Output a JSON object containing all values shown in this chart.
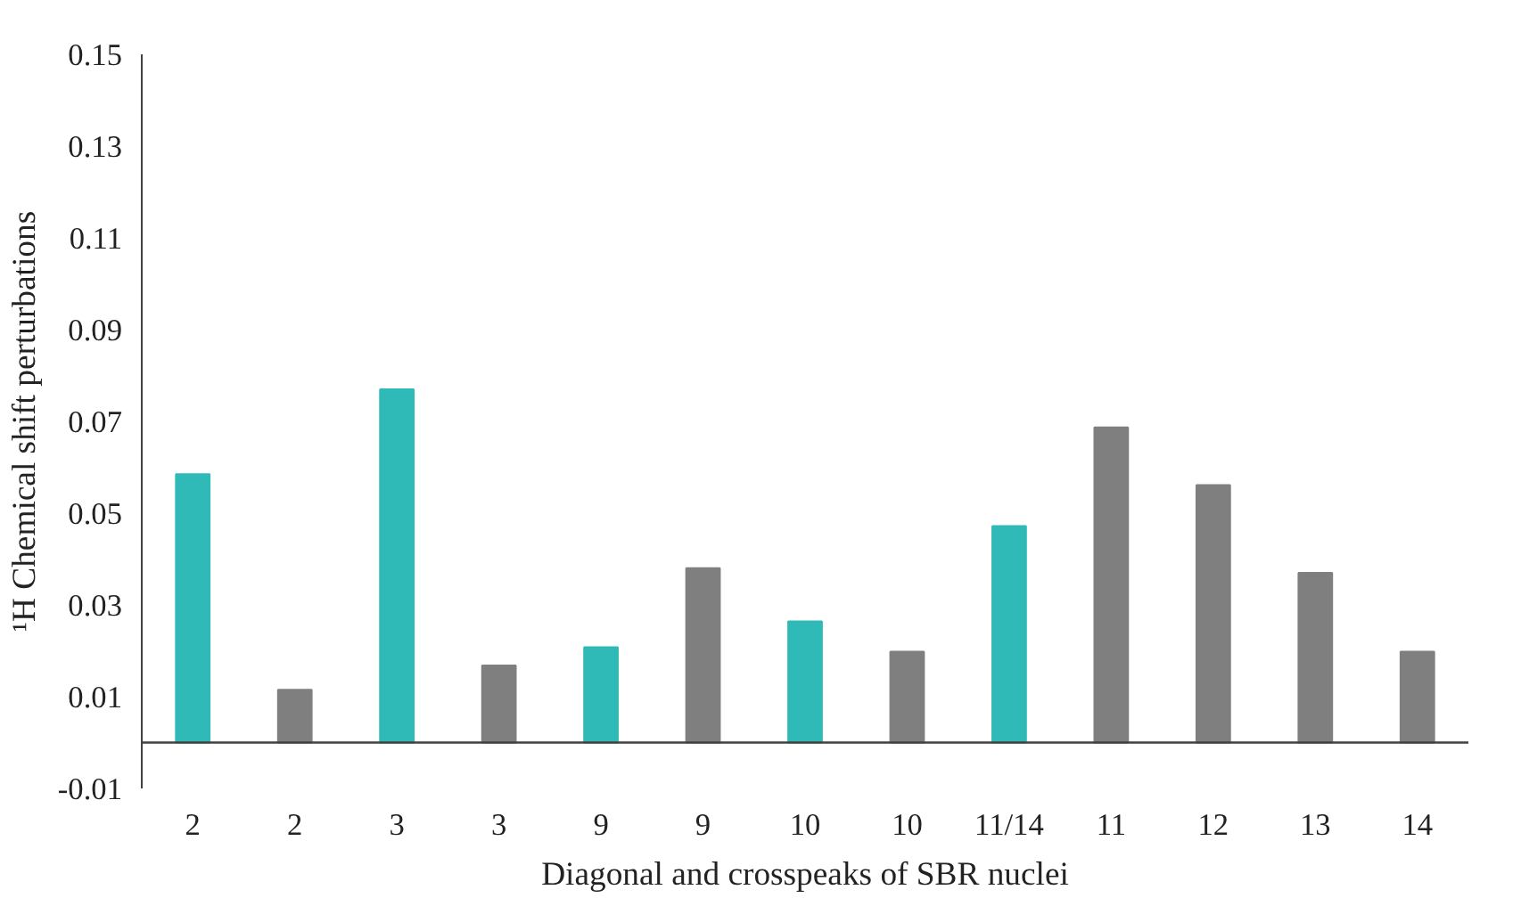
{
  "chart_data": {
    "type": "bar",
    "xlabel": "Diagonal and crosspeaks of SBR nuclei",
    "ylabel": "¹H Chemical shift perturbations",
    "categories": [
      "2",
      "2",
      "3",
      "3",
      "9",
      "9",
      "10",
      "10",
      "11/14",
      "11",
      "12",
      "13",
      "14"
    ],
    "values": [
      0.0585,
      0.0115,
      0.077,
      0.0168,
      0.0208,
      0.038,
      0.0264,
      0.0198,
      0.0472,
      0.0687,
      0.0561,
      0.037,
      0.0198
    ],
    "colors": [
      "#2fbab7",
      "#7f7f7f",
      "#2fbab7",
      "#7f7f7f",
      "#2fbab7",
      "#7f7f7f",
      "#2fbab7",
      "#7f7f7f",
      "#2fbab7",
      "#7f7f7f",
      "#7f7f7f",
      "#7f7f7f",
      "#7f7f7f"
    ],
    "ylim": [
      -0.01,
      0.15
    ],
    "yticks": [
      {
        "value": -0.01,
        "label": "-0.01"
      },
      {
        "value": 0.01,
        "label": "0.01"
      },
      {
        "value": 0.03,
        "label": "0.03"
      },
      {
        "value": 0.05,
        "label": "0.05"
      },
      {
        "value": 0.07,
        "label": "0.07"
      },
      {
        "value": 0.09,
        "label": "0.09"
      },
      {
        "value": 0.11,
        "label": "0.11"
      },
      {
        "value": 0.13,
        "label": "0.13"
      },
      {
        "value": 0.15,
        "label": "0.15"
      }
    ],
    "grid": false
  }
}
